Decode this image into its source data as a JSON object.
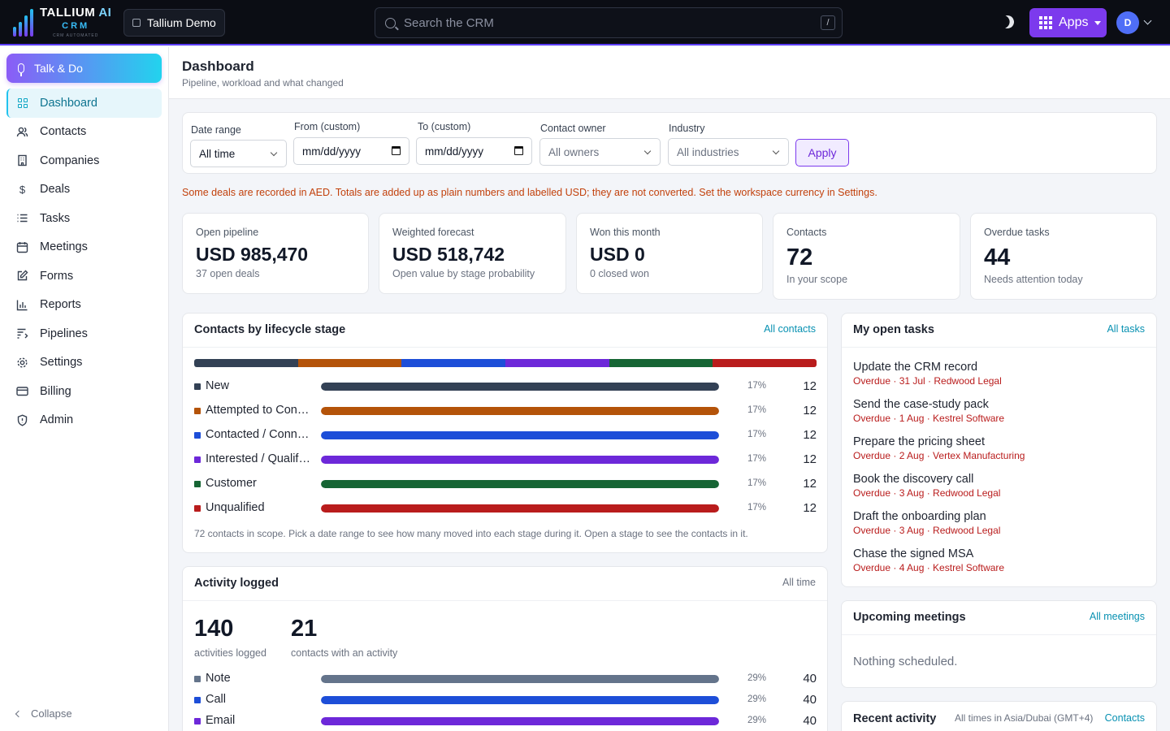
{
  "brand": {
    "name": "TALLIUM",
    "name_ai": "AI",
    "sub": "CRM",
    "tag": "CRM AUTOMATED"
  },
  "workspace": "Tallium Demo",
  "search": {
    "placeholder": "Search the CRM",
    "shortcut": "/"
  },
  "apps_label": "Apps",
  "avatar_initial": "D",
  "colors": {
    "accent": "#7c3aed",
    "cyan": "#22c3ee",
    "warning": "#c2410c",
    "overdue": "#b91c1c"
  },
  "sidebar": {
    "talk_label": "Talk & Do",
    "items": [
      {
        "label": "Dashboard",
        "icon": "dashboard-grid-icon"
      },
      {
        "label": "Contacts",
        "icon": "users-icon"
      },
      {
        "label": "Companies",
        "icon": "building-icon"
      },
      {
        "label": "Deals",
        "icon": "dollar-icon"
      },
      {
        "label": "Tasks",
        "icon": "list-icon"
      },
      {
        "label": "Meetings",
        "icon": "calendar-icon"
      },
      {
        "label": "Forms",
        "icon": "edit-icon"
      },
      {
        "label": "Reports",
        "icon": "bar-chart-icon"
      },
      {
        "label": "Pipelines",
        "icon": "pipeline-icon"
      },
      {
        "label": "Settings",
        "icon": "gear-icon"
      },
      {
        "label": "Billing",
        "icon": "credit-card-icon"
      },
      {
        "label": "Admin",
        "icon": "shield-icon"
      }
    ],
    "collapse_label": "Collapse"
  },
  "header": {
    "title": "Dashboard",
    "subtitle": "Pipeline, workload and what changed"
  },
  "filters": {
    "date_range": {
      "label": "Date range",
      "value": "All time"
    },
    "from": {
      "label": "From (custom)",
      "value": "mm/dd/yyyy"
    },
    "to": {
      "label": "To (custom)",
      "value": "mm/dd/yyyy"
    },
    "owner": {
      "label": "Contact owner",
      "value": "All owners"
    },
    "industry": {
      "label": "Industry",
      "value": "All industries"
    },
    "apply_label": "Apply"
  },
  "warning": "Some deals are recorded in AED. Totals are added up as plain numbers and labelled USD; they are not converted. Set the workspace currency in Settings.",
  "kpis": [
    {
      "label": "Open pipeline",
      "value": "USD 985,470",
      "sub": "37 open deals"
    },
    {
      "label": "Weighted forecast",
      "value": "USD 518,742",
      "sub": "Open value by stage probability"
    },
    {
      "label": "Won this month",
      "value": "USD 0",
      "sub": "0 closed won"
    },
    {
      "label": "Contacts",
      "value": "72",
      "sub": "In your scope"
    },
    {
      "label": "Overdue tasks",
      "value": "44",
      "sub": "Needs attention today"
    }
  ],
  "lifecycle": {
    "title": "Contacts by lifecycle stage",
    "link": "All contacts",
    "rows": [
      {
        "name": "New",
        "pct": "17%",
        "count": "12",
        "fraction": 1.0,
        "color": "#334155"
      },
      {
        "name": "Attempted to Contact",
        "pct": "17%",
        "count": "12",
        "fraction": 1.0,
        "color": "#b45309"
      },
      {
        "name": "Contacted / Connected",
        "pct": "17%",
        "count": "12",
        "fraction": 1.0,
        "color": "#1d4ed8"
      },
      {
        "name": "Interested / Qualified",
        "pct": "17%",
        "count": "12",
        "fraction": 1.0,
        "color": "#6d28d9"
      },
      {
        "name": "Customer",
        "pct": "17%",
        "count": "12",
        "fraction": 1.0,
        "color": "#166534"
      },
      {
        "name": "Unqualified",
        "pct": "17%",
        "count": "12",
        "fraction": 1.0,
        "color": "#b91c1c"
      }
    ],
    "footnote": "72 contacts in scope. Pick a date range to see how many moved into each stage during it. Open a stage to see the contacts in it."
  },
  "activity": {
    "title": "Activity logged",
    "range": "All time",
    "total": "140",
    "total_label": "activities logged",
    "contacts": "21",
    "contacts_label": "contacts with an activity",
    "rows": [
      {
        "name": "Note",
        "pct": "29%",
        "count": "40",
        "fraction": 1.0,
        "color": "#64748b"
      },
      {
        "name": "Call",
        "pct": "29%",
        "count": "40",
        "fraction": 1.0,
        "color": "#1d4ed8"
      },
      {
        "name": "Email",
        "pct": "29%",
        "count": "40",
        "fraction": 1.0,
        "color": "#6d28d9"
      }
    ]
  },
  "tasks": {
    "title": "My open tasks",
    "link": "All tasks",
    "items": [
      {
        "title": "Update the CRM record",
        "meta": "Overdue · 31 Jul · Redwood Legal"
      },
      {
        "title": "Send the case-study pack",
        "meta": "Overdue · 1 Aug · Kestrel Software"
      },
      {
        "title": "Prepare the pricing sheet",
        "meta": "Overdue · 2 Aug · Vertex Manufacturing"
      },
      {
        "title": "Book the discovery call",
        "meta": "Overdue · 3 Aug · Redwood Legal"
      },
      {
        "title": "Draft the onboarding plan",
        "meta": "Overdue · 3 Aug · Redwood Legal"
      },
      {
        "title": "Chase the signed MSA",
        "meta": "Overdue · 4 Aug · Kestrel Software"
      }
    ]
  },
  "meetings": {
    "title": "Upcoming meetings",
    "link": "All meetings",
    "empty": "Nothing scheduled."
  },
  "recent": {
    "title": "Recent activity",
    "timezone": "All times in Asia/Dubai (GMT+4)",
    "link": "Contacts"
  }
}
